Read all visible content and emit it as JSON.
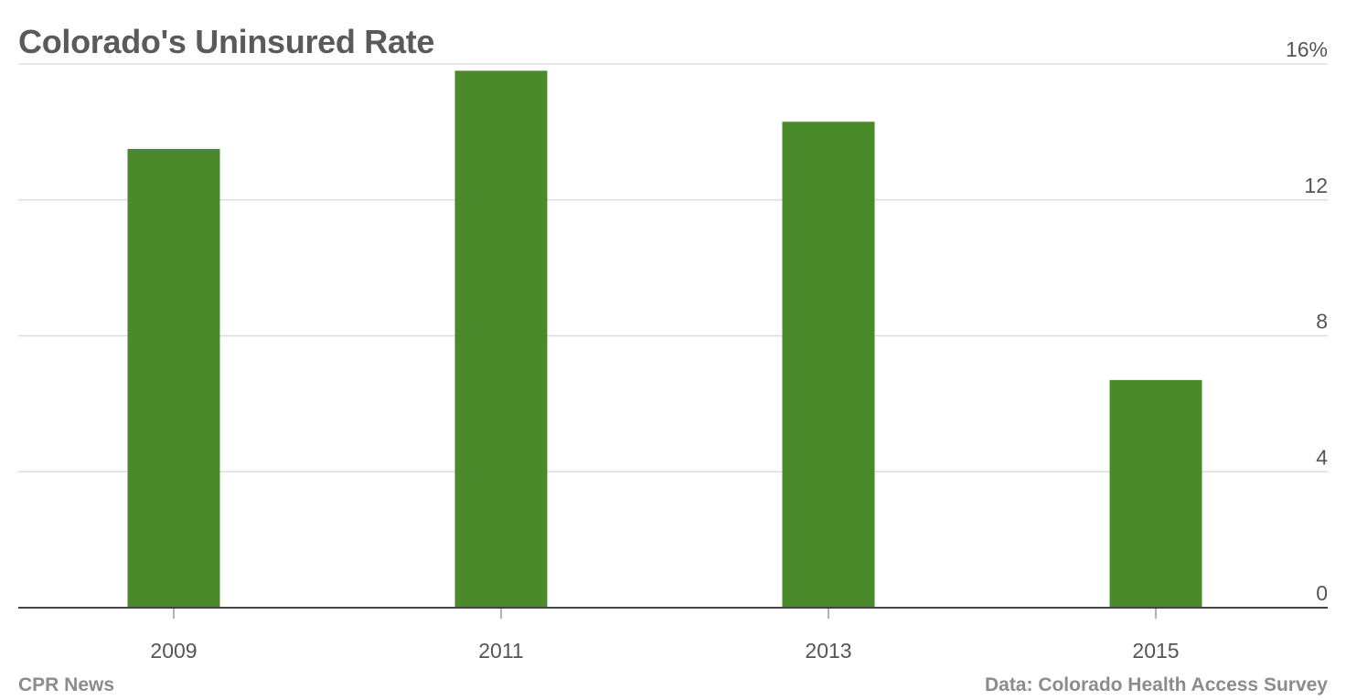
{
  "chart_data": {
    "type": "bar",
    "title": "Colorado's Uninsured Rate",
    "categories": [
      "2009",
      "2011",
      "2013",
      "2015"
    ],
    "values": [
      13.5,
      15.8,
      14.3,
      6.7
    ],
    "y_ticks": [
      0,
      4,
      8,
      12,
      16
    ],
    "y_tick_labels": [
      "0",
      "4",
      "8",
      "12",
      "16%"
    ],
    "ylim": [
      0,
      16
    ],
    "y_axis_side": "right",
    "grid": true,
    "bar_color": "#4b8a2b",
    "grid_color": "#dddddd",
    "baseline_color": "#444444",
    "source": "CPR News",
    "data_credit": "Data: Colorado Health Access Survey"
  }
}
